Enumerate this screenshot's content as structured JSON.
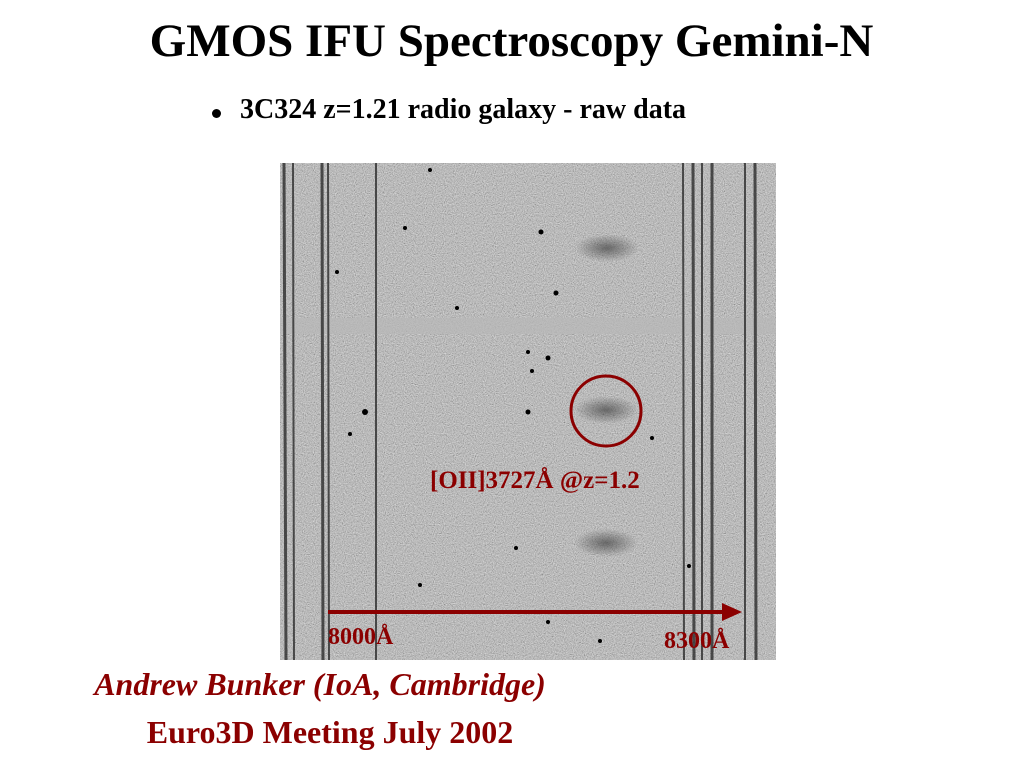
{
  "header": {
    "title": "GMOS IFU Spectroscopy Gemini-N"
  },
  "body": {
    "bullet": "3C324 z=1.21 radio galaxy - raw data"
  },
  "figure": {
    "line_label": "[OII]3727Å @z=1.2",
    "wavelength_start": "8000Å",
    "wavelength_end": "8300Å"
  },
  "footer": {
    "author": "Andrew Bunker (IoA, Cambridge)",
    "meeting": "Euro3D Meeting July 2002"
  }
}
